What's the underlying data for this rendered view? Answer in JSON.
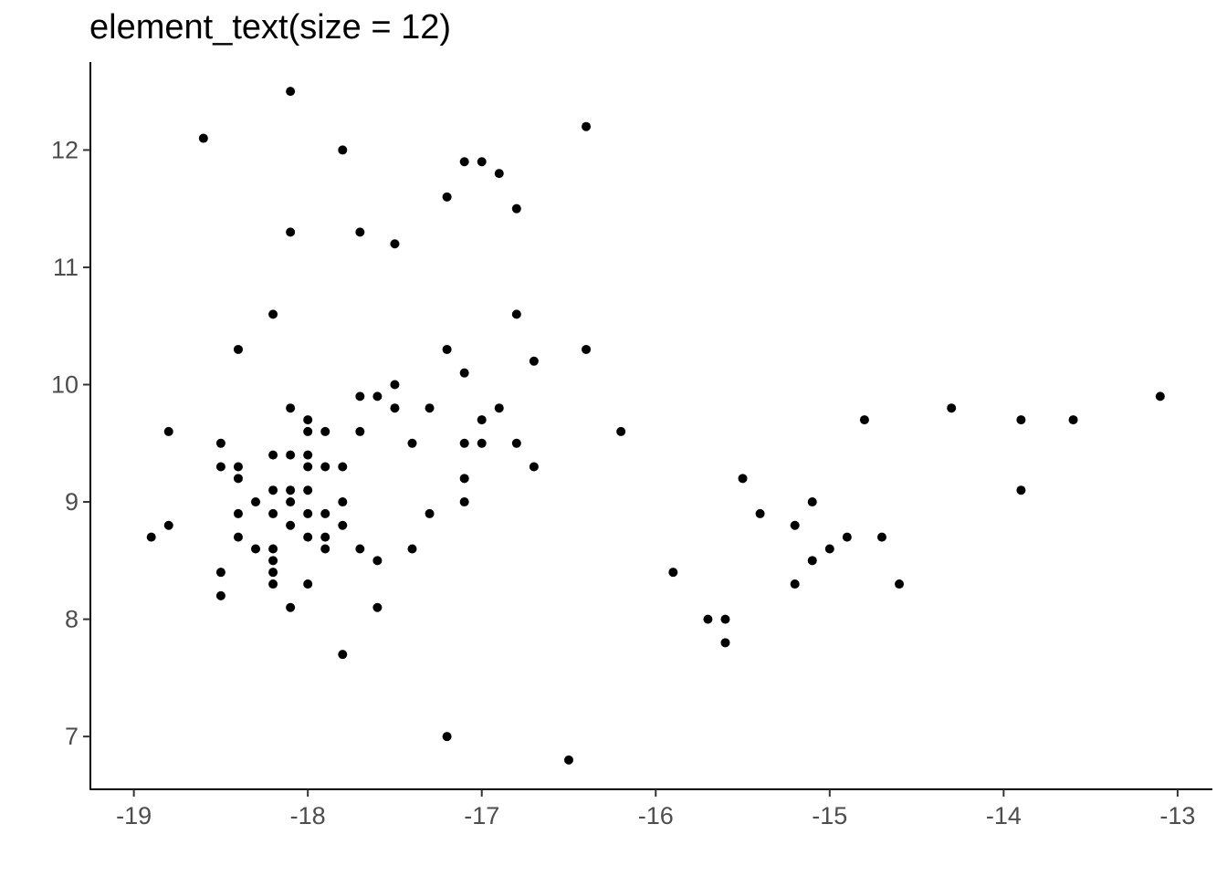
{
  "chart_data": {
    "type": "scatter",
    "title": "element_text(size = 12)",
    "xlabel": "",
    "ylabel": "",
    "xlim": [
      -19.25,
      -12.8
    ],
    "ylim": [
      6.55,
      12.75
    ],
    "x_ticks": [
      -19,
      -18,
      -17,
      -16,
      -15,
      -14,
      -13
    ],
    "x_tick_labels": [
      "-19",
      "-18",
      "-17",
      "-16",
      "-15",
      "-14",
      "-13"
    ],
    "y_ticks": [
      7,
      8,
      9,
      10,
      11,
      12
    ],
    "y_tick_labels": [
      "7",
      "8",
      "9",
      "10",
      "11",
      "12"
    ],
    "grid": false,
    "point_color": "#000000",
    "points": [
      {
        "x": -18.1,
        "y": 12.5
      },
      {
        "x": -18.6,
        "y": 12.1
      },
      {
        "x": -17.8,
        "y": 12.0
      },
      {
        "x": -16.4,
        "y": 12.2
      },
      {
        "x": -17.1,
        "y": 11.9
      },
      {
        "x": -17.0,
        "y": 11.9
      },
      {
        "x": -16.9,
        "y": 11.8
      },
      {
        "x": -17.2,
        "y": 11.6
      },
      {
        "x": -16.8,
        "y": 11.5
      },
      {
        "x": -18.1,
        "y": 11.3
      },
      {
        "x": -17.7,
        "y": 11.3
      },
      {
        "x": -17.5,
        "y": 11.2
      },
      {
        "x": -18.2,
        "y": 10.6
      },
      {
        "x": -16.8,
        "y": 10.6
      },
      {
        "x": -18.4,
        "y": 10.3
      },
      {
        "x": -17.2,
        "y": 10.3
      },
      {
        "x": -16.4,
        "y": 10.3
      },
      {
        "x": -16.7,
        "y": 10.2
      },
      {
        "x": -17.1,
        "y": 10.1
      },
      {
        "x": -17.5,
        "y": 10.0
      },
      {
        "x": -17.7,
        "y": 9.9
      },
      {
        "x": -17.6,
        "y": 9.9
      },
      {
        "x": -13.1,
        "y": 9.9
      },
      {
        "x": -18.1,
        "y": 9.8
      },
      {
        "x": -17.5,
        "y": 9.8
      },
      {
        "x": -17.3,
        "y": 9.8
      },
      {
        "x": -16.9,
        "y": 9.8
      },
      {
        "x": -14.3,
        "y": 9.8
      },
      {
        "x": -18.0,
        "y": 9.7
      },
      {
        "x": -17.0,
        "y": 9.7
      },
      {
        "x": -14.8,
        "y": 9.7
      },
      {
        "x": -13.9,
        "y": 9.7
      },
      {
        "x": -13.6,
        "y": 9.7
      },
      {
        "x": -18.8,
        "y": 9.6
      },
      {
        "x": -18.0,
        "y": 9.6
      },
      {
        "x": -17.9,
        "y": 9.6
      },
      {
        "x": -17.7,
        "y": 9.6
      },
      {
        "x": -16.2,
        "y": 9.6
      },
      {
        "x": -18.5,
        "y": 9.5
      },
      {
        "x": -17.4,
        "y": 9.5
      },
      {
        "x": -17.1,
        "y": 9.5
      },
      {
        "x": -17.0,
        "y": 9.5
      },
      {
        "x": -16.8,
        "y": 9.5
      },
      {
        "x": -18.2,
        "y": 9.4
      },
      {
        "x": -18.1,
        "y": 9.4
      },
      {
        "x": -18.0,
        "y": 9.4
      },
      {
        "x": -18.5,
        "y": 9.3
      },
      {
        "x": -18.4,
        "y": 9.3
      },
      {
        "x": -18.0,
        "y": 9.3
      },
      {
        "x": -17.9,
        "y": 9.3
      },
      {
        "x": -17.8,
        "y": 9.3
      },
      {
        "x": -16.7,
        "y": 9.3
      },
      {
        "x": -18.4,
        "y": 9.2
      },
      {
        "x": -17.1,
        "y": 9.2
      },
      {
        "x": -15.5,
        "y": 9.2
      },
      {
        "x": -18.2,
        "y": 9.1
      },
      {
        "x": -18.1,
        "y": 9.1
      },
      {
        "x": -18.0,
        "y": 9.1
      },
      {
        "x": -13.9,
        "y": 9.1
      },
      {
        "x": -18.3,
        "y": 9.0
      },
      {
        "x": -18.1,
        "y": 9.0
      },
      {
        "x": -17.8,
        "y": 9.0
      },
      {
        "x": -17.1,
        "y": 9.0
      },
      {
        "x": -15.1,
        "y": 9.0
      },
      {
        "x": -18.4,
        "y": 8.9
      },
      {
        "x": -18.2,
        "y": 8.9
      },
      {
        "x": -18.0,
        "y": 8.9
      },
      {
        "x": -17.9,
        "y": 8.9
      },
      {
        "x": -17.3,
        "y": 8.9
      },
      {
        "x": -15.4,
        "y": 8.9
      },
      {
        "x": -18.8,
        "y": 8.8
      },
      {
        "x": -18.1,
        "y": 8.8
      },
      {
        "x": -17.8,
        "y": 8.8
      },
      {
        "x": -15.2,
        "y": 8.8
      },
      {
        "x": -18.9,
        "y": 8.7
      },
      {
        "x": -18.4,
        "y": 8.7
      },
      {
        "x": -18.0,
        "y": 8.7
      },
      {
        "x": -17.9,
        "y": 8.7
      },
      {
        "x": -14.9,
        "y": 8.7
      },
      {
        "x": -14.7,
        "y": 8.7
      },
      {
        "x": -18.3,
        "y": 8.6
      },
      {
        "x": -18.2,
        "y": 8.6
      },
      {
        "x": -17.9,
        "y": 8.6
      },
      {
        "x": -17.7,
        "y": 8.6
      },
      {
        "x": -17.4,
        "y": 8.6
      },
      {
        "x": -15.0,
        "y": 8.6
      },
      {
        "x": -18.2,
        "y": 8.5
      },
      {
        "x": -17.6,
        "y": 8.5
      },
      {
        "x": -15.1,
        "y": 8.5
      },
      {
        "x": -18.5,
        "y": 8.4
      },
      {
        "x": -18.2,
        "y": 8.4
      },
      {
        "x": -15.9,
        "y": 8.4
      },
      {
        "x": -18.2,
        "y": 8.3
      },
      {
        "x": -18.0,
        "y": 8.3
      },
      {
        "x": -15.2,
        "y": 8.3
      },
      {
        "x": -14.6,
        "y": 8.3
      },
      {
        "x": -18.5,
        "y": 8.2
      },
      {
        "x": -18.1,
        "y": 8.1
      },
      {
        "x": -17.6,
        "y": 8.1
      },
      {
        "x": -15.7,
        "y": 8.0
      },
      {
        "x": -15.6,
        "y": 8.0
      },
      {
        "x": -15.6,
        "y": 7.8
      },
      {
        "x": -17.8,
        "y": 7.7
      },
      {
        "x": -17.2,
        "y": 7.0
      },
      {
        "x": -16.5,
        "y": 6.8
      }
    ]
  }
}
